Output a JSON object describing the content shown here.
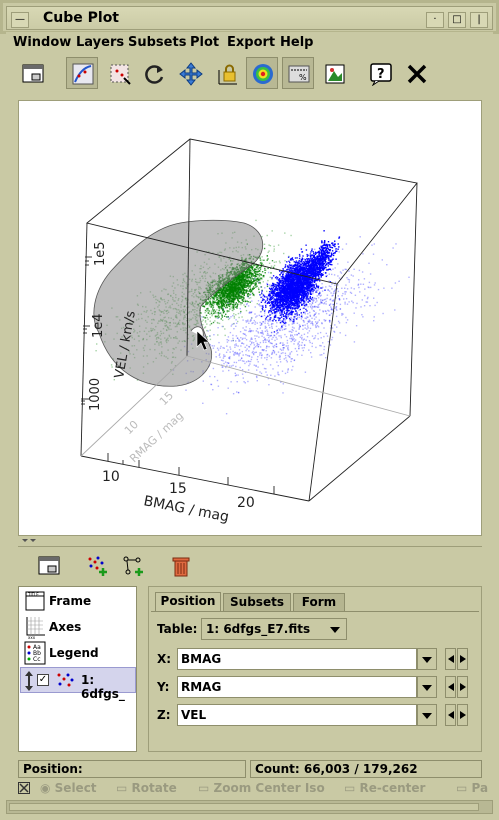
{
  "window": {
    "title": "Cube Plot"
  },
  "menu": [
    "Window",
    "Layers",
    "Subsets",
    "Plot",
    "Export",
    "Help"
  ],
  "toolbar": {
    "icons": [
      "window-icon",
      "draw-subset-icon",
      "blob-subset-icon",
      "rotate-icon",
      "navigate-icon",
      "lock-aspect-icon",
      "density-icon",
      "legend-icon",
      "export-image-icon",
      "help-icon",
      "close-icon"
    ]
  },
  "plot": {
    "xlabel": "BMAG / mag",
    "ylabel": "RMAG / mag",
    "zlabel": "VEL / km/s",
    "x_ticks": [
      "10",
      "15",
      "20"
    ],
    "y_ticks": [
      "10",
      "15"
    ],
    "z_ticks": [
      "1000",
      "1e4",
      "1e5"
    ],
    "colors": {
      "subset_all": "#0000ff",
      "subset_other": "#008000",
      "blob": "#888888"
    }
  },
  "layers": {
    "items": [
      {
        "label": "Frame"
      },
      {
        "label": "Axes"
      },
      {
        "label": "Legend"
      },
      {
        "label": "1: 6dfgs_"
      }
    ]
  },
  "tabs": [
    "Position",
    "Subsets",
    "Form"
  ],
  "position": {
    "table_label": "Table:",
    "table_value": "1: 6dfgs_E7.fits",
    "x_label": "X:",
    "x_value": "BMAG",
    "y_label": "Y:",
    "y_value": "RMAG",
    "z_label": "Z:",
    "z_value": "VEL"
  },
  "status": {
    "position_label": "Position:",
    "count": "Count: 66,003 / 179,262"
  },
  "bottom": [
    "Select",
    "Rotate",
    "Zoom Center Iso",
    "Re-center",
    "Pa"
  ]
}
